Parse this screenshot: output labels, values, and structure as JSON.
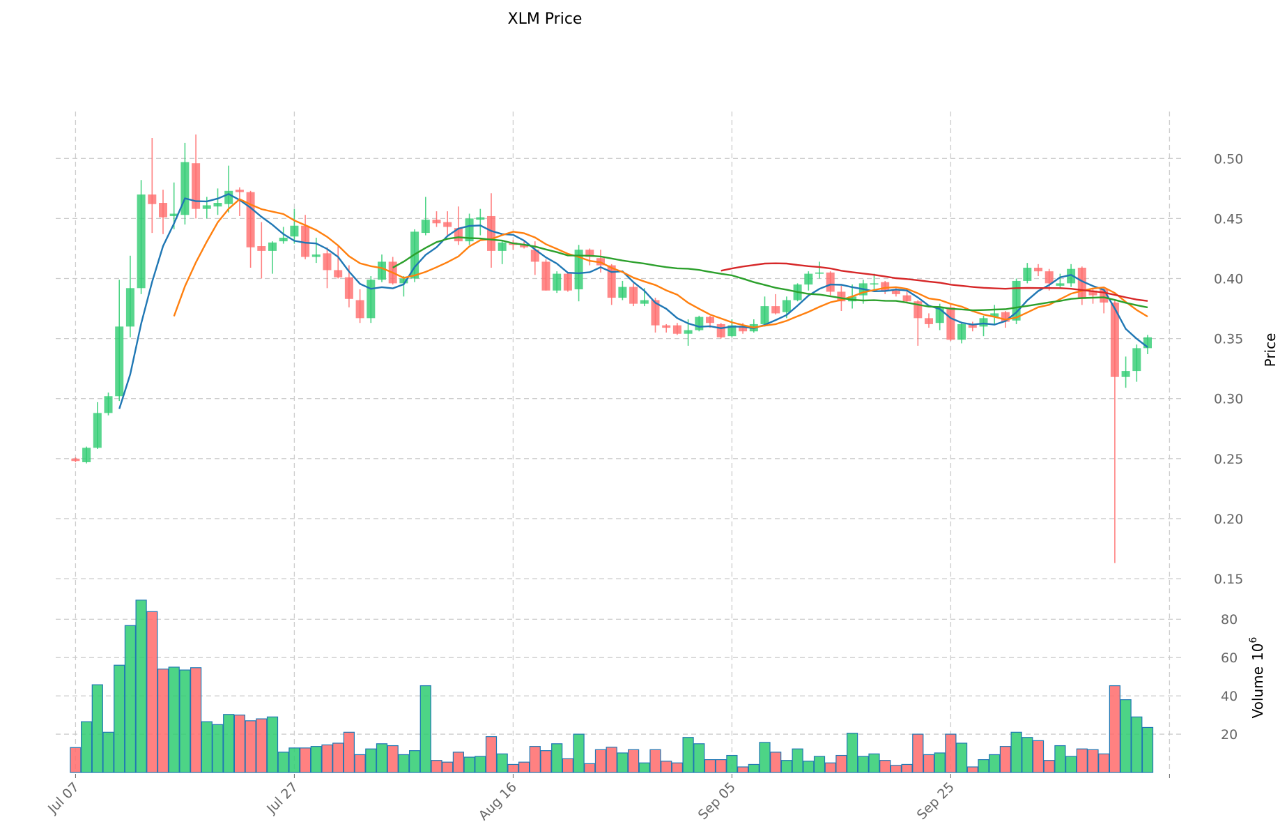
{
  "chart_data": {
    "type": "candlestick",
    "title": "XLM Price",
    "ylabel": "Price",
    "volume_label": "Volume",
    "volume_exponent": "10",
    "volume_exponent_power": "6",
    "start_date": "Jul 07",
    "x_tick_labels": [
      "Jul 07",
      "Jul 27",
      "Aug 16",
      "Sep 05",
      "Sep 25"
    ],
    "x_tick_day_offsets": [
      0,
      20,
      40,
      60,
      80,
      100
    ],
    "price_ticks": [
      "0.15",
      "0.20",
      "0.25",
      "0.30",
      "0.35",
      "0.40",
      "0.45",
      "0.50"
    ],
    "price_ylim": [
      0.13,
      0.535
    ],
    "volume_ticks": [
      "20",
      "40",
      "60",
      "80"
    ],
    "volume_ylim": [
      0,
      93
    ],
    "grid": true,
    "colors": {
      "up": "#2ecc71",
      "down": "#ff6b6b",
      "volume_edge": "#1f77b4",
      "ma5": "#1f77b4",
      "ma10": "#ff7f0e",
      "ma30": "#2ca02c",
      "ma60": "#d62728"
    },
    "moving_averages": [
      5,
      10,
      30,
      60
    ],
    "ohlc": [
      [
        0.25,
        0.251,
        0.247,
        0.248
      ],
      [
        0.247,
        0.26,
        0.246,
        0.259
      ],
      [
        0.259,
        0.297,
        0.258,
        0.288
      ],
      [
        0.288,
        0.305,
        0.286,
        0.302
      ],
      [
        0.302,
        0.399,
        0.298,
        0.36
      ],
      [
        0.36,
        0.419,
        0.351,
        0.392
      ],
      [
        0.392,
        0.482,
        0.387,
        0.47
      ],
      [
        0.47,
        0.517,
        0.438,
        0.462
      ],
      [
        0.463,
        0.474,
        0.437,
        0.451
      ],
      [
        0.452,
        0.48,
        0.441,
        0.454
      ],
      [
        0.453,
        0.513,
        0.445,
        0.497
      ],
      [
        0.496,
        0.52,
        0.45,
        0.458
      ],
      [
        0.458,
        0.468,
        0.45,
        0.461
      ],
      [
        0.46,
        0.475,
        0.453,
        0.463
      ],
      [
        0.462,
        0.494,
        0.455,
        0.473
      ],
      [
        0.474,
        0.476,
        0.452,
        0.472
      ],
      [
        0.472,
        0.473,
        0.409,
        0.426
      ],
      [
        0.427,
        0.447,
        0.4,
        0.423
      ],
      [
        0.423,
        0.431,
        0.404,
        0.43
      ],
      [
        0.431,
        0.443,
        0.429,
        0.434
      ],
      [
        0.435,
        0.458,
        0.429,
        0.444
      ],
      [
        0.444,
        0.453,
        0.416,
        0.418
      ],
      [
        0.418,
        0.434,
        0.413,
        0.42
      ],
      [
        0.421,
        0.426,
        0.392,
        0.407
      ],
      [
        0.407,
        0.428,
        0.4,
        0.401
      ],
      [
        0.401,
        0.411,
        0.376,
        0.383
      ],
      [
        0.382,
        0.391,
        0.363,
        0.367
      ],
      [
        0.367,
        0.402,
        0.363,
        0.399
      ],
      [
        0.399,
        0.42,
        0.397,
        0.414
      ],
      [
        0.414,
        0.418,
        0.395,
        0.396
      ],
      [
        0.396,
        0.402,
        0.385,
        0.4
      ],
      [
        0.4,
        0.441,
        0.397,
        0.439
      ],
      [
        0.438,
        0.468,
        0.436,
        0.449
      ],
      [
        0.449,
        0.456,
        0.443,
        0.446
      ],
      [
        0.447,
        0.456,
        0.436,
        0.443
      ],
      [
        0.442,
        0.46,
        0.428,
        0.431
      ],
      [
        0.431,
        0.454,
        0.428,
        0.45
      ],
      [
        0.449,
        0.458,
        0.436,
        0.451
      ],
      [
        0.452,
        0.471,
        0.409,
        0.423
      ],
      [
        0.423,
        0.431,
        0.412,
        0.43
      ],
      [
        0.43,
        0.432,
        0.424,
        0.428
      ],
      [
        0.428,
        0.432,
        0.425,
        0.426
      ],
      [
        0.424,
        0.431,
        0.403,
        0.414
      ],
      [
        0.414,
        0.416,
        0.39,
        0.39
      ],
      [
        0.39,
        0.406,
        0.388,
        0.404
      ],
      [
        0.404,
        0.405,
        0.389,
        0.39
      ],
      [
        0.391,
        0.428,
        0.381,
        0.424
      ],
      [
        0.424,
        0.425,
        0.411,
        0.418
      ],
      [
        0.417,
        0.424,
        0.405,
        0.411
      ],
      [
        0.411,
        0.412,
        0.378,
        0.384
      ],
      [
        0.384,
        0.398,
        0.382,
        0.393
      ],
      [
        0.393,
        0.396,
        0.377,
        0.379
      ],
      [
        0.379,
        0.392,
        0.377,
        0.382
      ],
      [
        0.382,
        0.384,
        0.355,
        0.361
      ],
      [
        0.361,
        0.362,
        0.355,
        0.359
      ],
      [
        0.361,
        0.363,
        0.353,
        0.354
      ],
      [
        0.354,
        0.366,
        0.344,
        0.357
      ],
      [
        0.357,
        0.369,
        0.356,
        0.368
      ],
      [
        0.368,
        0.369,
        0.359,
        0.363
      ],
      [
        0.362,
        0.363,
        0.35,
        0.351
      ],
      [
        0.352,
        0.366,
        0.351,
        0.361
      ],
      [
        0.36,
        0.363,
        0.354,
        0.356
      ],
      [
        0.356,
        0.366,
        0.355,
        0.362
      ],
      [
        0.362,
        0.385,
        0.36,
        0.377
      ],
      [
        0.377,
        0.387,
        0.37,
        0.371
      ],
      [
        0.372,
        0.385,
        0.367,
        0.382
      ],
      [
        0.382,
        0.396,
        0.381,
        0.395
      ],
      [
        0.395,
        0.406,
        0.39,
        0.404
      ],
      [
        0.404,
        0.414,
        0.4,
        0.405
      ],
      [
        0.405,
        0.406,
        0.386,
        0.389
      ],
      [
        0.389,
        0.394,
        0.373,
        0.381
      ],
      [
        0.381,
        0.395,
        0.375,
        0.385
      ],
      [
        0.386,
        0.399,
        0.379,
        0.396
      ],
      [
        0.395,
        0.404,
        0.391,
        0.396
      ],
      [
        0.397,
        0.398,
        0.387,
        0.39
      ],
      [
        0.39,
        0.392,
        0.385,
        0.387
      ],
      [
        0.386,
        0.391,
        0.38,
        0.381
      ],
      [
        0.381,
        0.382,
        0.344,
        0.367
      ],
      [
        0.367,
        0.371,
        0.359,
        0.362
      ],
      [
        0.363,
        0.379,
        0.357,
        0.376
      ],
      [
        0.376,
        0.378,
        0.348,
        0.349
      ],
      [
        0.349,
        0.364,
        0.346,
        0.362
      ],
      [
        0.362,
        0.364,
        0.356,
        0.359
      ],
      [
        0.36,
        0.369,
        0.352,
        0.367
      ],
      [
        0.368,
        0.378,
        0.362,
        0.371
      ],
      [
        0.372,
        0.373,
        0.359,
        0.364
      ],
      [
        0.365,
        0.4,
        0.362,
        0.398
      ],
      [
        0.398,
        0.413,
        0.396,
        0.409
      ],
      [
        0.409,
        0.412,
        0.402,
        0.406
      ],
      [
        0.406,
        0.408,
        0.39,
        0.396
      ],
      [
        0.394,
        0.404,
        0.392,
        0.396
      ],
      [
        0.396,
        0.412,
        0.393,
        0.408
      ],
      [
        0.409,
        0.41,
        0.378,
        0.383
      ],
      [
        0.39,
        0.392,
        0.379,
        0.386
      ],
      [
        0.391,
        0.393,
        0.371,
        0.38
      ],
      [
        0.38,
        0.382,
        0.163,
        0.318
      ],
      [
        0.318,
        0.335,
        0.309,
        0.323
      ],
      [
        0.323,
        0.345,
        0.314,
        0.342
      ],
      [
        0.342,
        0.353,
        0.337,
        0.351
      ]
    ],
    "volume": [
      13,
      26.5,
      45.8,
      21,
      56,
      76.7,
      90,
      84,
      54,
      55,
      53.5,
      54.7,
      26.5,
      25,
      30.3,
      30,
      27,
      28,
      29,
      10.6,
      12.8,
      12.8,
      13.6,
      14.4,
      15.3,
      21,
      9.3,
      12.3,
      15,
      14,
      9.3,
      11.4,
      45.3,
      6.3,
      5.4,
      10.6,
      8,
      8.4,
      18.7,
      9.7,
      4.2,
      5.4,
      13.6,
      11.4,
      15,
      7.2,
      20,
      4.6,
      11.9,
      13.2,
      10.2,
      11.9,
      5,
      11.9,
      5.9,
      5,
      18.3,
      15,
      6.7,
      6.7,
      8.9,
      2.9,
      4.2,
      15.7,
      10.6,
      6.3,
      12.3,
      5.9,
      8.4,
      5,
      8.9,
      20.5,
      8.4,
      9.7,
      6.3,
      3.7,
      4.2,
      20,
      9.3,
      10.2,
      20,
      15.3,
      2.9,
      6.7,
      9.3,
      13.6,
      21,
      18.3,
      16.6,
      6.3,
      14,
      8.4,
      12.3,
      11.9,
      9.7,
      45.3,
      38,
      29,
      23.5
    ]
  }
}
